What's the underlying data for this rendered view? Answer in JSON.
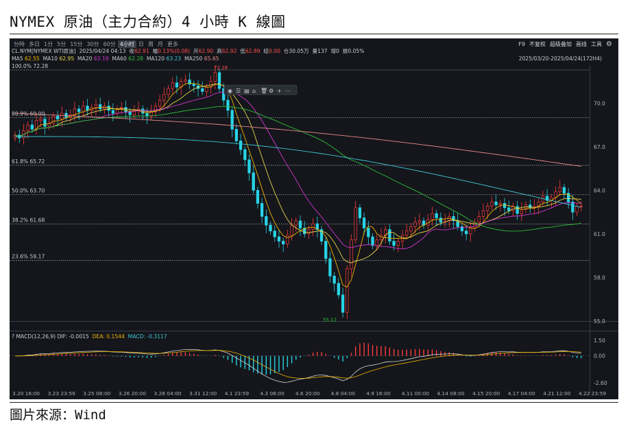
{
  "title": "NYMEX 原油（主力合約）4 小時 K 線圖",
  "source": "圖片來源：Wind",
  "terminal": {
    "tabs": [
      "分時",
      "多日",
      "1分",
      "5分",
      "15分",
      "30分",
      "60分",
      "4小时",
      "日",
      "周",
      "月",
      "更多"
    ],
    "active_tab": "4小时",
    "tools": [
      "F9",
      "不复权",
      "超级叠加",
      "画线",
      "工具"
    ],
    "quote": {
      "symbol": "CL.NYM[NYMEX WTI原油]",
      "datetime": "2025/04/24 04:13",
      "close_label": "收",
      "close": "62.91",
      "change_label": "幅",
      "change": "0.13%(0.08)",
      "open_label": "开",
      "open": "62.90",
      "high_label": "高",
      "high": "62.92",
      "low_label": "低",
      "low": "62.89",
      "settle_label": "结",
      "settle": "0.00",
      "oi_label": "仓",
      "oi": "30.05万",
      "volume_label": "量",
      "volume": "137",
      "increase_label": "增",
      "increase": "0",
      "amplitude_label": "振",
      "amplitude": "0.05%"
    },
    "ma_legend": [
      {
        "label": "MA5",
        "value": "62.55",
        "color": "#f0b400"
      },
      {
        "label": "MA10",
        "value": "62.95",
        "color": "#e8d44d"
      },
      {
        "label": "MA20",
        "value": "63.19",
        "color": "#d336d3"
      },
      {
        "label": "MA60",
        "value": "62.28",
        "color": "#2fbf3a"
      },
      {
        "label": "MA120",
        "value": "63.23",
        "color": "#3ec6d6"
      },
      {
        "label": "MA250",
        "value": "65.65",
        "color": "#e88a8a"
      }
    ],
    "range": "2025/03/20-2025/04/24(172H4)",
    "macd_label": "MACD(12,26,9)",
    "macd": {
      "dif_label": "DIF:",
      "dif": "-0.0015",
      "dea_label": "DEA:",
      "dea": "0.1544",
      "macd_label": "MACD:",
      "macd": "-0.3117"
    }
  },
  "chart_data": [
    {
      "type": "candlestick",
      "y_axis_ticks": [
        55.0,
        58.0,
        61.0,
        64.0,
        67.0,
        70.0
      ],
      "ylim": [
        55.0,
        72.28
      ],
      "x_tick_labels": [
        "3.20 16:00",
        "3.23 23:59",
        "3.25 08:00",
        "3.26 20:00",
        "3.28 04:00",
        "3.31 12:00",
        "4.1 23:59",
        "4.3 08:00",
        "4.6 20:00",
        "4.8 04:00",
        "4.9 16:00",
        "4.11 00:00",
        "4.14 08:00",
        "4.15 20:00",
        "4.17 04:00",
        "4.21 12:00",
        "4.22 23:59"
      ],
      "fibonacci": [
        {
          "label": "100.0%",
          "value": 72.28
        },
        {
          "label": "80.9%",
          "value": 69.0
        },
        {
          "label": "61.8%",
          "value": 65.72
        },
        {
          "label": "50.0%",
          "value": 63.7
        },
        {
          "label": "38.2%",
          "value": 61.68
        },
        {
          "label": "23.6%",
          "value": 59.17
        }
      ],
      "high_marker": 72.28,
      "low_marker": 55.12,
      "candles_close": [
        67.8,
        67.6,
        68.1,
        68.5,
        68.2,
        68.8,
        68.9,
        68.4,
        68.6,
        69.1,
        68.9,
        69.3,
        69.0,
        69.2,
        69.6,
        69.4,
        69.8,
        69.5,
        69.7,
        69.9,
        69.6,
        69.8,
        69.5,
        69.3,
        69.6,
        69.7,
        69.4,
        69.2,
        69.5,
        69.6,
        69.3,
        69.1,
        69.4,
        69.8,
        70.2,
        70.6,
        71.0,
        71.4,
        71.1,
        71.5,
        71.6,
        71.3,
        71.2,
        71.0,
        70.8,
        71.1,
        71.5,
        72.1,
        71.0,
        70.2,
        69.5,
        68.2,
        67.4,
        66.8,
        66.1,
        65.2,
        64.0,
        63.1,
        62.2,
        61.6,
        61.2,
        60.8,
        60.5,
        60.3,
        60.9,
        61.6,
        61.9,
        61.4,
        61.0,
        61.3,
        61.7,
        61.3,
        60.5,
        59.3,
        58.1,
        57.6,
        56.8,
        55.6,
        58.6,
        60.6,
        62.8,
        62.1,
        61.4,
        60.8,
        60.2,
        60.6,
        60.9,
        61.3,
        60.5,
        60.2,
        60.5,
        60.9,
        61.2,
        61.5,
        61.8,
        61.9,
        61.6,
        62.0,
        62.4,
        62.1,
        61.8,
        61.9,
        62.2,
        61.9,
        61.5,
        61.2,
        61.0,
        61.4,
        61.8,
        62.2,
        62.6,
        62.9,
        63.2,
        63.0,
        63.1,
        62.8,
        62.6,
        62.9,
        62.4,
        62.7,
        63.0,
        62.8,
        62.9,
        63.2,
        63.6,
        63.3,
        63.5,
        63.9,
        64.2,
        63.8,
        63.2,
        62.5,
        62.9,
        62.91
      ],
      "ma_series": [
        {
          "label": "MA5"
        },
        {
          "label": "MA10"
        },
        {
          "label": "MA20"
        },
        {
          "label": "MA60"
        },
        {
          "label": "MA120"
        },
        {
          "label": "MA250"
        }
      ]
    },
    {
      "type": "macd",
      "y_axis_ticks": [
        1.5,
        0.0,
        -2.6
      ],
      "ylim": [
        -2.6,
        1.5
      ]
    }
  ]
}
